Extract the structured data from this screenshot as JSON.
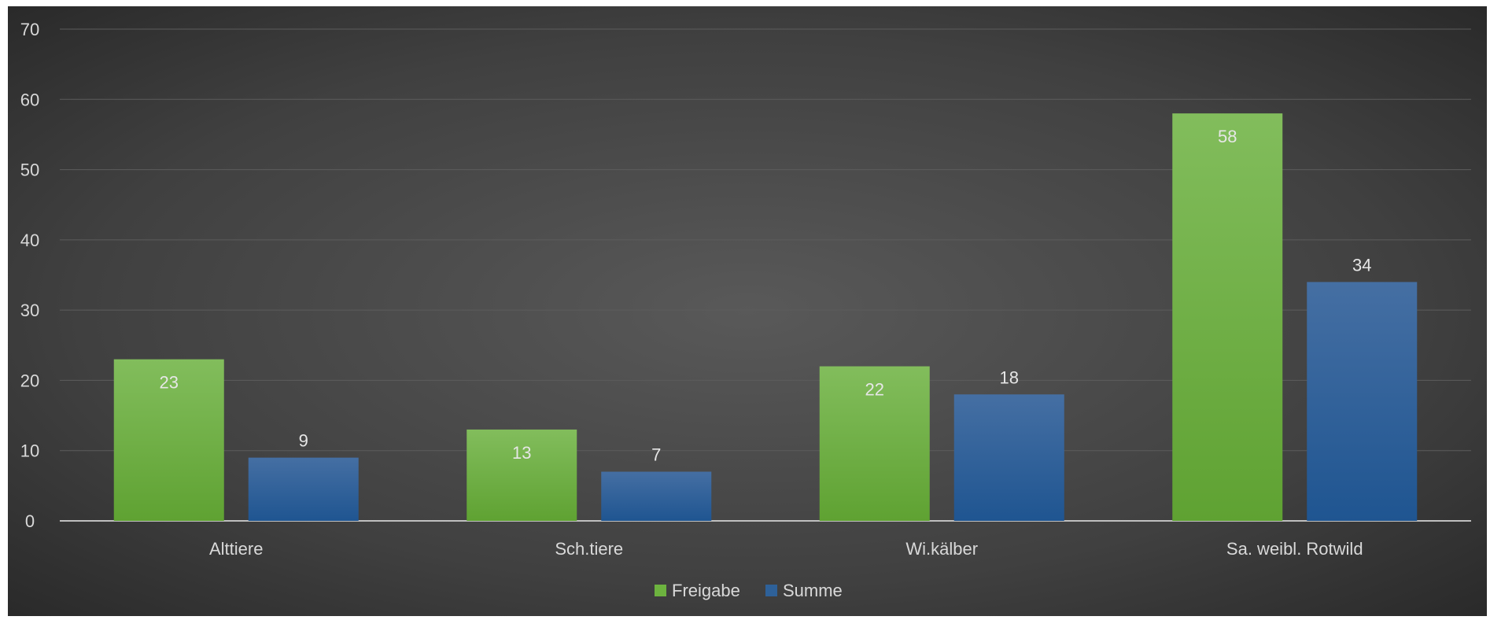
{
  "chart_data": {
    "type": "bar",
    "categories": [
      "Alttiere",
      "Sch.tiere",
      "Wi.kälber",
      "Sa. weibl. Rotwild"
    ],
    "series": [
      {
        "name": "Freigabe",
        "values": [
          23,
          13,
          22,
          58
        ],
        "color": "#6db33f"
      },
      {
        "name": "Summe",
        "values": [
          9,
          7,
          18,
          34
        ],
        "color": "#2e6199"
      }
    ],
    "ylim": [
      0,
      70
    ],
    "yticks": [
      0,
      10,
      20,
      30,
      40,
      50,
      60,
      70
    ],
    "grid": true,
    "legend": "bottom-center",
    "background": "#444444"
  }
}
